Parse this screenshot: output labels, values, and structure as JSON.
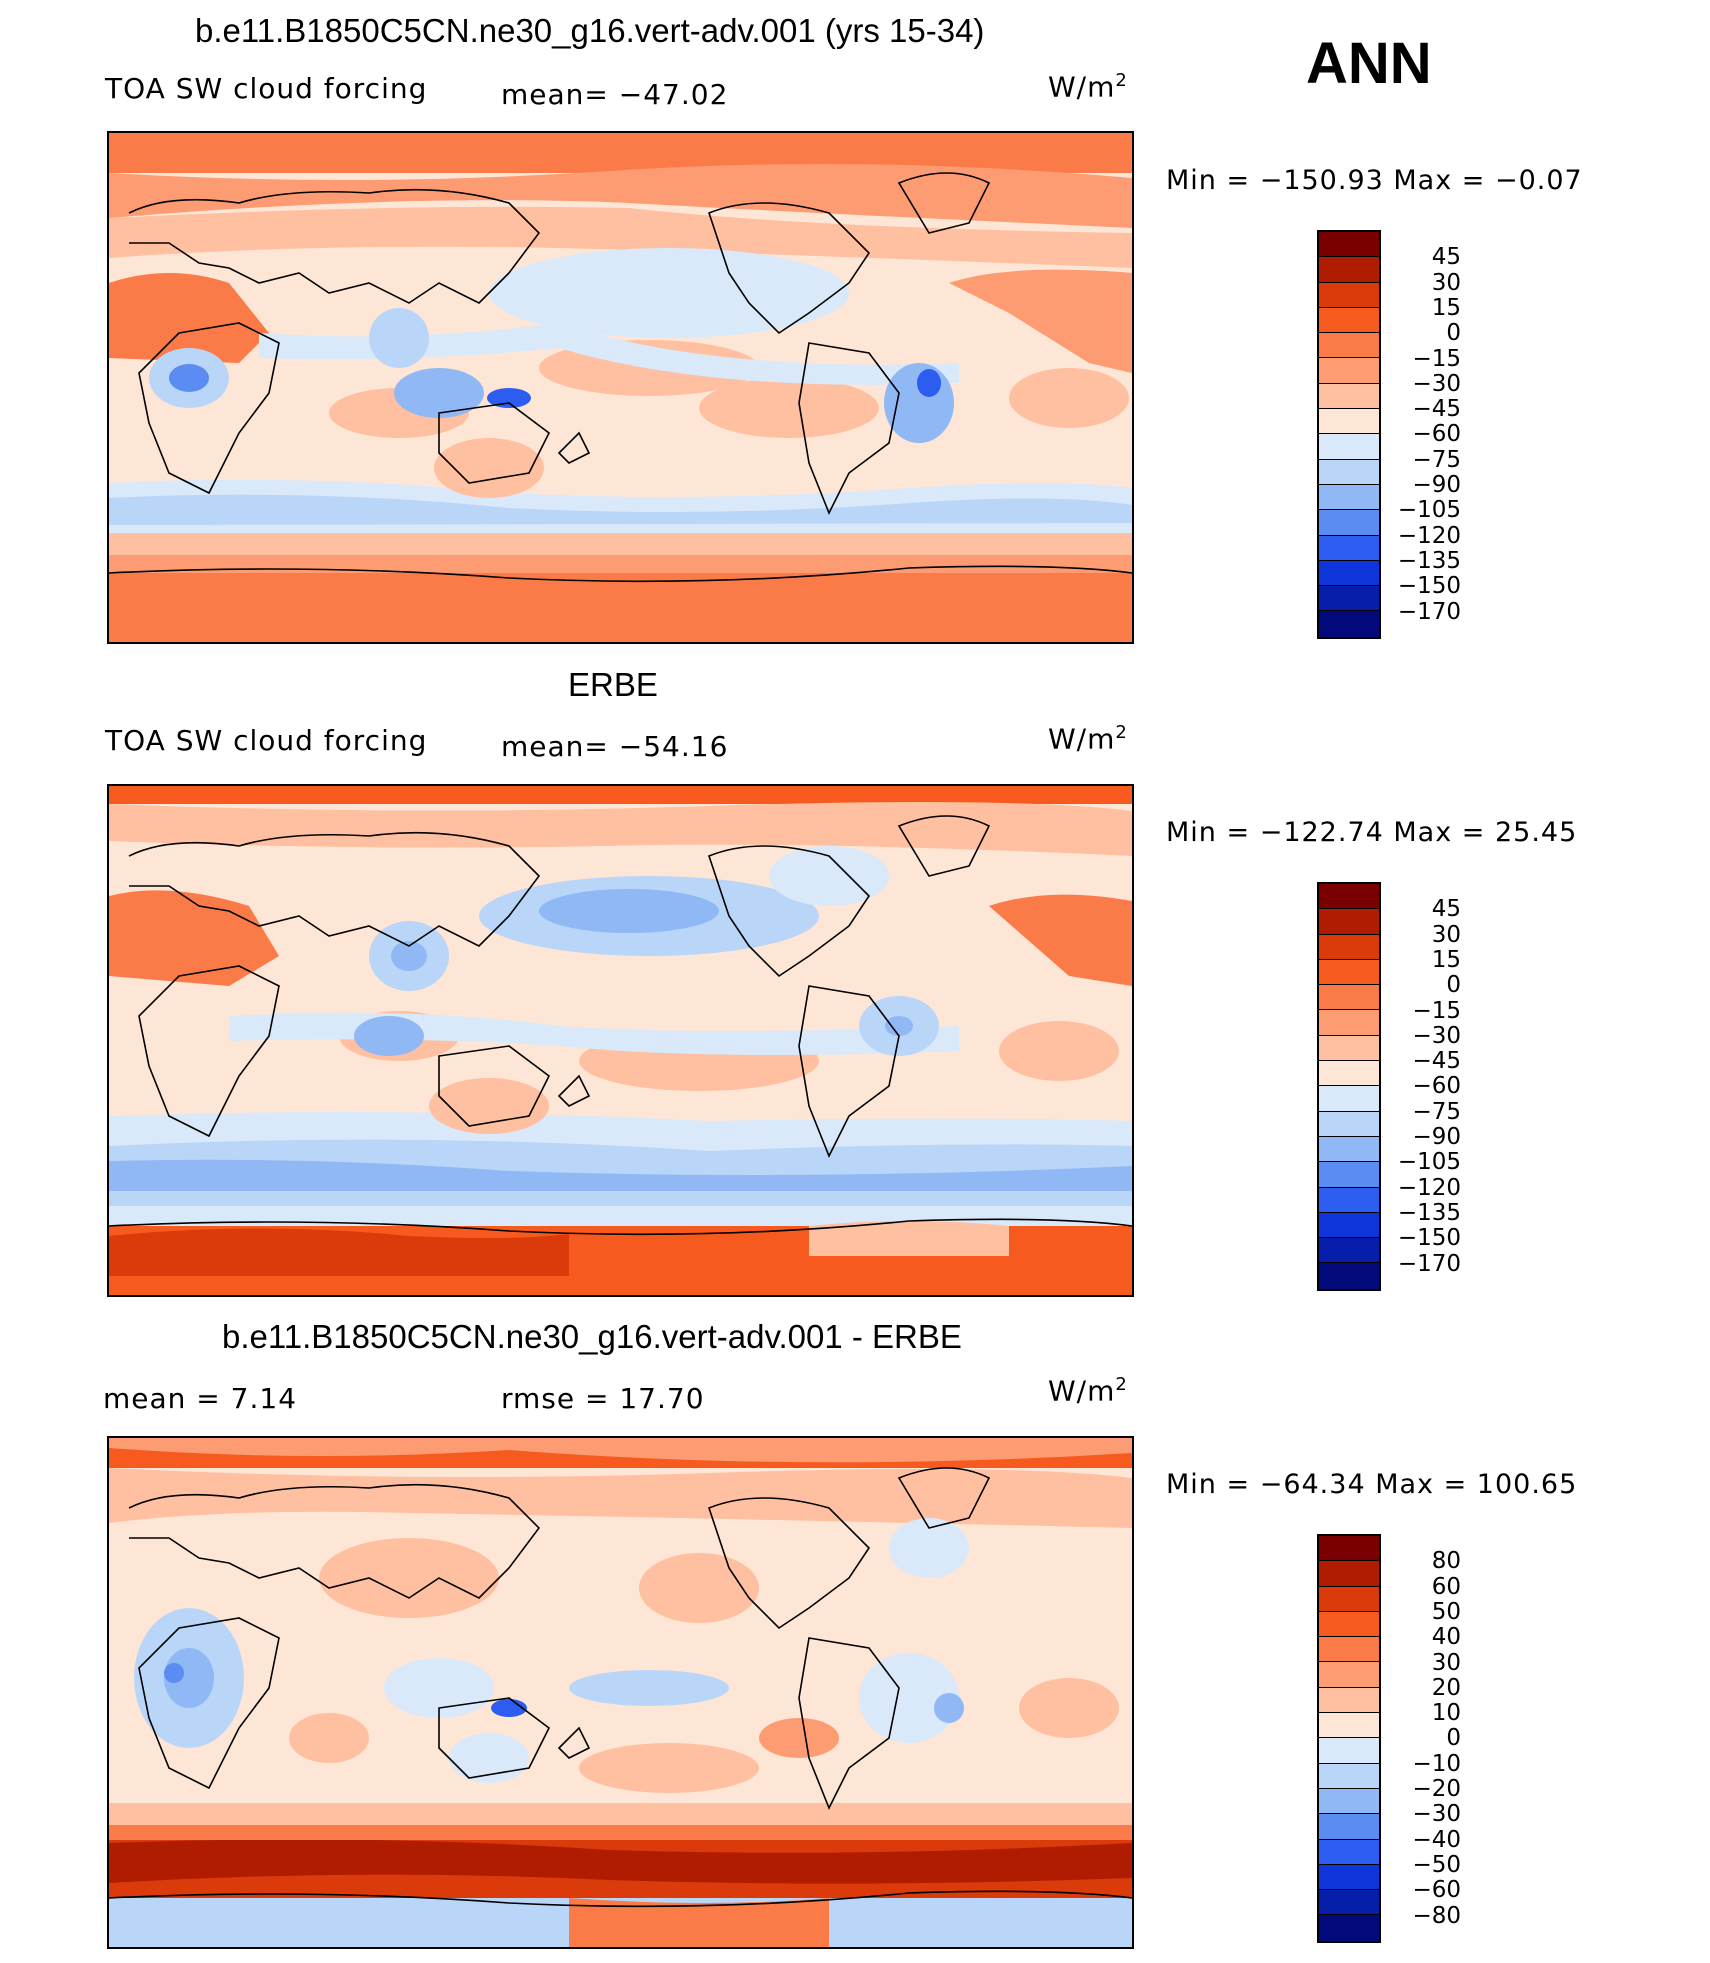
{
  "season": "ANN",
  "units": "W/m",
  "units_sup": "2",
  "panels": [
    {
      "title": "b.e11.B1850C5CN.ne30_g16.vert-adv.001 (yrs 15-34)",
      "variable": "TOA SW cloud forcing",
      "stat1": "mean= −47.02",
      "stat2": "",
      "minmax": "Min  =  −150.93  Max  =    −0.07",
      "levels": [
        "45",
        "30",
        "15",
        "0",
        "−15",
        "−30",
        "−45",
        "−60",
        "−75",
        "−90",
        "−105",
        "−120",
        "−135",
        "−150",
        "−170"
      ],
      "colors": [
        "#7a0000",
        "#b01c00",
        "#db3a0a",
        "#f75a1e",
        "#fb7b48",
        "#fd9b72",
        "#fec0a0",
        "#fee6d6",
        "#d9e9fa",
        "#b9d6f8",
        "#8fb8f5",
        "#5a8cf2",
        "#2c5cf0",
        "#0e35d9",
        "#071eab",
        "#02097a"
      ]
    },
    {
      "title": "ERBE",
      "variable": "TOA SW cloud forcing",
      "stat1": "mean= −54.16",
      "stat2": "",
      "minmax": "Min  =  −122.74  Max  =    25.45",
      "levels": [
        "45",
        "30",
        "15",
        "0",
        "−15",
        "−30",
        "−45",
        "−60",
        "−75",
        "−90",
        "−105",
        "−120",
        "−135",
        "−150",
        "−170"
      ],
      "colors": [
        "#7a0000",
        "#b01c00",
        "#db3a0a",
        "#f75a1e",
        "#fb7b48",
        "#fd9b72",
        "#fec0a0",
        "#fee6d6",
        "#d9e9fa",
        "#b9d6f8",
        "#8fb8f5",
        "#5a8cf2",
        "#2c5cf0",
        "#0e35d9",
        "#071eab",
        "#02097a"
      ]
    },
    {
      "title": "b.e11.B1850C5CN.ne30_g16.vert-adv.001 - ERBE",
      "variable": "",
      "stat1": "mean  =      7.14",
      "stat2": "rmse  =     17.70",
      "minmax": "Min  =  −64.34  Max  =  100.65",
      "levels": [
        "80",
        "60",
        "50",
        "40",
        "30",
        "20",
        "10",
        "0",
        "−10",
        "−20",
        "−30",
        "−40",
        "−50",
        "−60",
        "−80"
      ],
      "colors": [
        "#7a0000",
        "#b01c00",
        "#db3a0a",
        "#f75a1e",
        "#fb7b48",
        "#fd9b72",
        "#fec0a0",
        "#fee6d6",
        "#d9e9fa",
        "#b9d6f8",
        "#8fb8f5",
        "#5a8cf2",
        "#2c5cf0",
        "#0e35d9",
        "#071eab",
        "#02097a"
      ]
    }
  ]
}
